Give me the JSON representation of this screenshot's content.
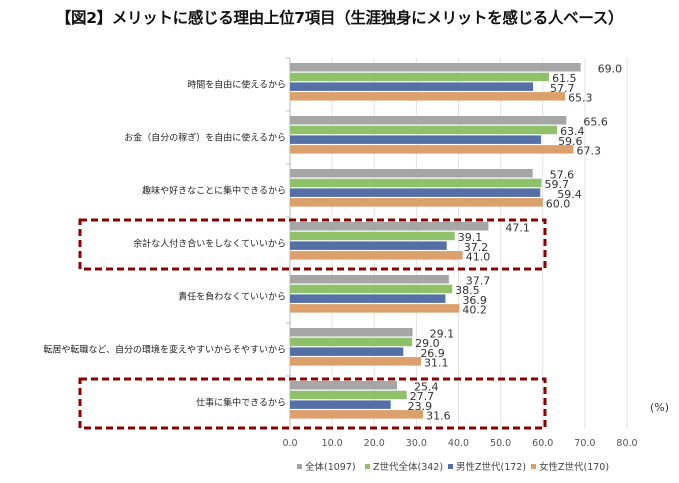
{
  "chart_data": {
    "type": "bar",
    "orientation": "horizontal",
    "title": "【図2】メリットに感じる理由上位7項目（生涯独身にメリットを感じる人ベース）",
    "unit_label": "(%)",
    "categories": [
      "時間を自由に使えるから",
      "お金（自分の稼ぎ）を自由に使えるから",
      "趣味や好きなことに集中できるから",
      "余計な人付き合いをしなくていいから",
      "責任を負わなくていいから",
      "転居や転職など、自分の環境を変えやすいからそやすいから",
      "仕事に集中できるから"
    ],
    "series": [
      {
        "name": "全体(1097)",
        "color": "#a6a6a6",
        "values": [
          69.0,
          65.6,
          57.6,
          47.1,
          37.7,
          29.1,
          25.4
        ]
      },
      {
        "name": "Z世代全体(342)",
        "color": "#8fc06a",
        "values": [
          61.5,
          63.4,
          59.7,
          39.1,
          38.5,
          29.0,
          27.7
        ]
      },
      {
        "name": "男性Z世代(172)",
        "color": "#5470a6",
        "values": [
          57.7,
          59.6,
          59.4,
          37.2,
          36.9,
          26.9,
          23.9
        ]
      },
      {
        "name": "女性Z世代(170)",
        "color": "#dba06c",
        "values": [
          65.3,
          67.3,
          60.0,
          41.0,
          40.2,
          31.1,
          31.6
        ]
      }
    ],
    "xlim": [
      0,
      80
    ],
    "xticks": [
      "0.0",
      "10.0",
      "20.0",
      "30.0",
      "40.0",
      "50.0",
      "60.0",
      "70.0",
      "80.0"
    ],
    "highlighted_categories": [
      3,
      6
    ],
    "highlight_color": "#8b0000",
    "legend": "bottom",
    "grid": true
  }
}
